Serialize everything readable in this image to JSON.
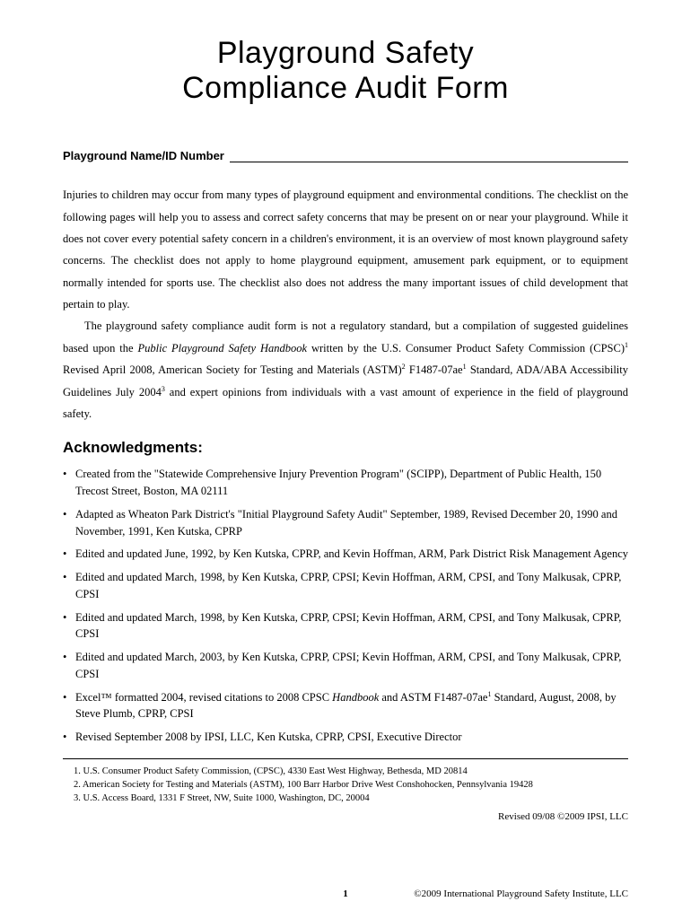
{
  "title_line1": "Playground Safety",
  "title_line2": "Compliance Audit Form",
  "field_label": "Playground Name/ID Number",
  "para1": "Injuries to children may occur from many types of playground equipment and environmental conditions. The checklist on the following pages will help you to assess and correct safety concerns that may be present on or near your playground. While it does not cover every potential safety concern in a children's environment, it is an overview of most known playground safety concerns. The checklist does not apply to home playground equipment, amusement park equipment, or to equipment normally intended for sports use. The checklist also does not address the many important issues of child development that pertain to play.",
  "para2_pre": "The playground safety compliance audit form is not a regulatory standard, but a compilation of suggested guidelines based upon the ",
  "para2_italic": "Public Playground Safety Handbook",
  "para2_post1": " written by the U.S. Consumer Product Safety Commission (CPSC)",
  "para2_sup1": "1",
  "para2_post2": " Revised April 2008, American Society for Testing and Materials (ASTM)",
  "para2_sup2": "2",
  "para2_post3": " F1487-07ae",
  "para2_sup3": "1",
  "para2_post4": " Standard, ADA/ABA Accessibility Guidelines July 2004",
  "para2_sup4": "3",
  "para2_post5": " and expert opinions from individuals with a vast amount of experience in the field of playground safety.",
  "ack_heading": "Acknowledgments:",
  "ack_items": [
    "Created from the \"Statewide Comprehensive Injury Prevention Program\" (SCIPP), Department of Public Health, 150 Trecost Street, Boston, MA 02111",
    "Adapted as Wheaton Park District's \"Initial Playground Safety Audit\" September, 1989, Revised December 20, 1990 and November, 1991, Ken Kutska, CPRP",
    "Edited and updated June, 1992, by Ken Kutska, CPRP, and Kevin Hoffman, ARM, Park District Risk Management Agency",
    "Edited and updated March, 1998, by Ken Kutska, CPRP, CPSI; Kevin Hoffman, ARM, CPSI, and Tony Malkusak, CPRP, CPSI",
    "Edited and updated March, 1998, by Ken Kutska, CPRP, CPSI; Kevin Hoffman, ARM, CPSI, and Tony Malkusak, CPRP, CPSI",
    "Edited and updated March, 2003, by Ken Kutska, CPRP, CPSI; Kevin Hoffman, ARM, CPSI, and Tony Malkusak, CPRP, CPSI"
  ],
  "ack_item7_pre": "Excel™ formatted 2004, revised citations to 2008 CPSC ",
  "ack_item7_italic": "Handbook",
  "ack_item7_post1": " and ASTM F1487-07ae",
  "ack_item7_sup": "1",
  "ack_item7_post2": " Standard, August, 2008, by Steve Plumb, CPRP, CPSI",
  "ack_item8": "Revised September 2008 by IPSI, LLC, Ken Kutska, CPRP, CPSI, Executive Director",
  "footnote1": "1. U.S. Consumer Product Safety Commission, (CPSC), 4330 East West Highway, Bethesda, MD 20814",
  "footnote2": "2. American Society for Testing and Materials (ASTM), 100 Barr Harbor Drive West Conshohocken, Pennsylvania 19428",
  "footnote3": "3. U.S. Access Board, 1331 F Street, NW, Suite 1000, Washington, DC, 20004",
  "revised": "Revised 09/08 ©2009 IPSI, LLC",
  "page_number": "1",
  "footer_right": "©2009 International Playground Safety Institute, LLC"
}
